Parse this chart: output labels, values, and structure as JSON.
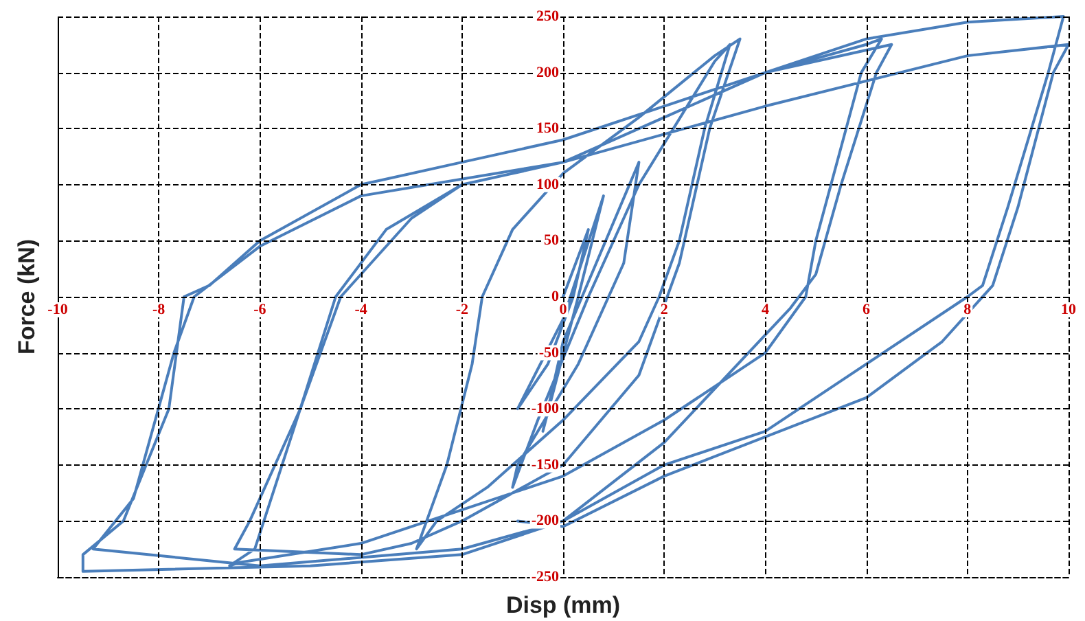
{
  "chart_data": {
    "type": "line",
    "xlabel": "Disp (mm)",
    "ylabel": "Force (kN)",
    "xlim": [
      -10,
      10
    ],
    "xticks": [
      -10,
      -8,
      -6,
      -4,
      -2,
      0,
      2,
      4,
      6,
      8,
      10
    ],
    "ylim": [
      -250,
      250
    ],
    "yticks": [
      -250,
      -200,
      -150,
      -100,
      -50,
      0,
      50,
      100,
      150,
      200,
      250
    ],
    "grid": true,
    "marker": "none",
    "line_style": "solid",
    "series": [
      {
        "color": "#4a7ebb",
        "x": [
          0,
          0.5,
          0.2,
          -0.3,
          -0.9,
          0,
          0.8,
          0.3,
          -0.4,
          0,
          1.5,
          1.2,
          0.3,
          -0.9,
          -1,
          -0.5,
          0.5,
          1.5,
          3,
          3.3,
          2.8,
          2.3,
          1.9,
          1.5,
          0,
          -1.5,
          -2.5,
          -2.9,
          -2.3,
          -1.8,
          -1.6,
          -1,
          0,
          1.5,
          3,
          3.5,
          2.9,
          2.3,
          1.5,
          0,
          -2,
          -3,
          -4,
          -6.5,
          -6.2,
          -5.2,
          -4.5,
          -3.5,
          -2,
          0,
          2,
          4,
          6,
          6.3,
          5.9,
          5,
          4.8,
          4,
          2,
          0,
          -2,
          -4,
          -6.4,
          -6.6,
          -6.1,
          -5.2,
          -4.4,
          -3,
          -2,
          0,
          2,
          4,
          6.5,
          6.2,
          5.5,
          5,
          4.5,
          2,
          0,
          -2,
          -5,
          -9.5,
          -9.5,
          -8.7,
          -7.8,
          -7.5,
          -7,
          -6,
          -4,
          -2,
          0,
          2,
          4,
          6,
          8,
          9.9,
          9.6,
          8.8,
          8.3,
          8,
          6,
          4,
          2,
          0,
          -2,
          -6,
          -9.3,
          -8.5,
          -7.7,
          -7.3,
          -6,
          -4,
          0,
          4,
          8,
          10,
          9.7,
          9,
          8.5,
          7.5,
          6,
          2,
          0,
          -0.9
        ],
        "values": [
          0,
          60,
          0,
          -60,
          -100,
          -20,
          90,
          0,
          -120,
          -40,
          120,
          30,
          -60,
          -150,
          -170,
          -110,
          0,
          100,
          210,
          225,
          150,
          50,
          0,
          -40,
          -110,
          -170,
          -200,
          -225,
          -150,
          -60,
          0,
          60,
          110,
          160,
          215,
          230,
          150,
          30,
          -70,
          -150,
          -200,
          -220,
          -230,
          -225,
          -200,
          -100,
          0,
          60,
          100,
          120,
          160,
          200,
          225,
          230,
          200,
          50,
          0,
          -50,
          -110,
          -160,
          -190,
          -220,
          -237,
          -240,
          -225,
          -100,
          0,
          70,
          100,
          120,
          160,
          200,
          225,
          200,
          100,
          20,
          -10,
          -130,
          -200,
          -230,
          -240,
          -245,
          -230,
          -200,
          -100,
          0,
          10,
          50,
          100,
          120,
          140,
          170,
          200,
          230,
          245,
          250,
          200,
          80,
          10,
          0,
          -60,
          -120,
          -150,
          -200,
          -225,
          -240,
          -225,
          -180,
          -50,
          0,
          45,
          90,
          120,
          170,
          215,
          225,
          200,
          80,
          10,
          -40,
          -90,
          -160,
          -205,
          -200
        ]
      }
    ]
  }
}
